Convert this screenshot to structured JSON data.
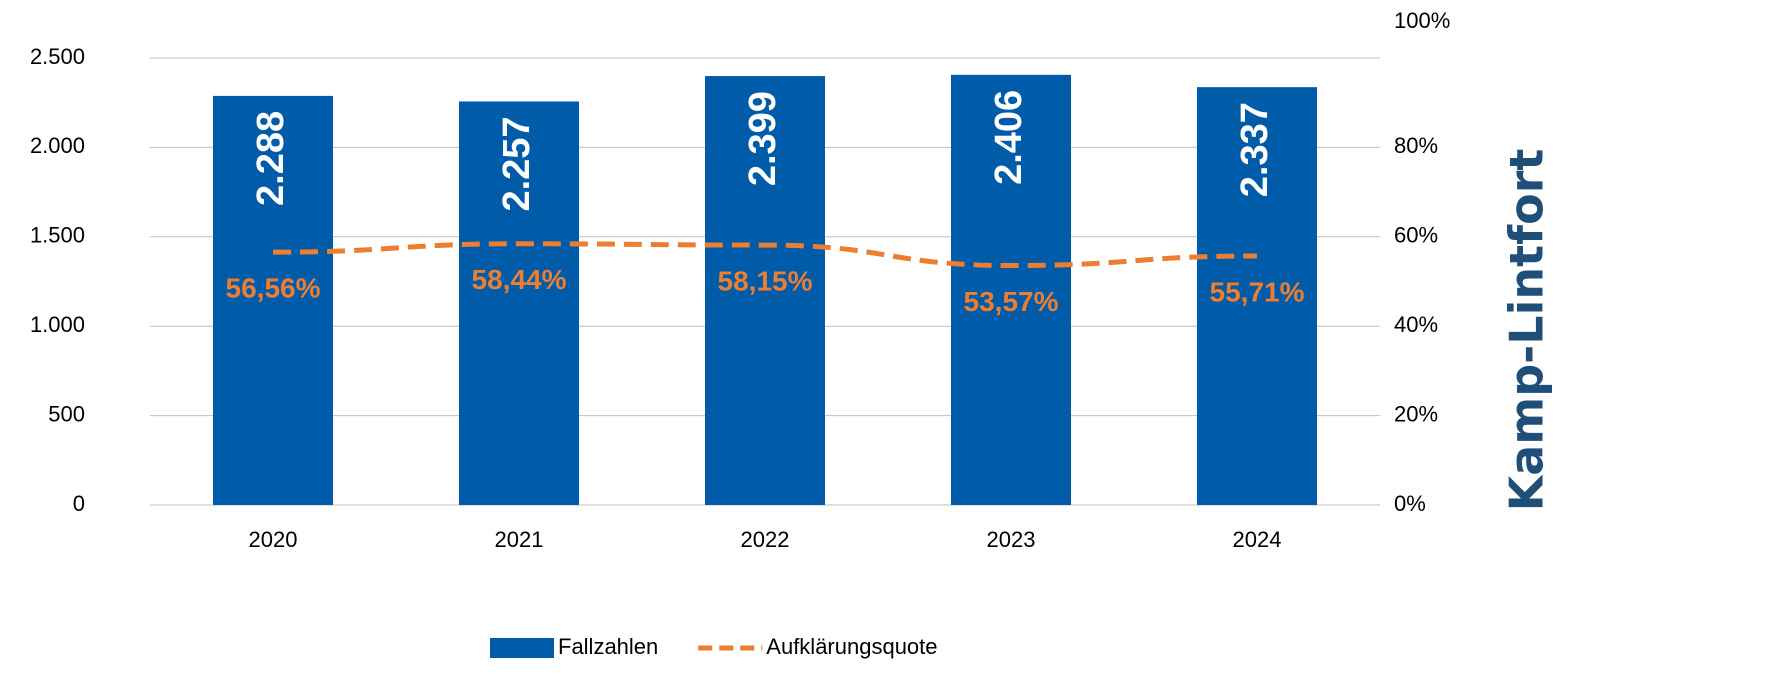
{
  "chart_data": {
    "type": "bar-line",
    "title": "Kamp-Lintfort",
    "categories": [
      "2020",
      "2021",
      "2022",
      "2023",
      "2024"
    ],
    "series": [
      {
        "name": "Fallzahlen",
        "color": "#005ca9",
        "type": "bar",
        "values": [
          2288,
          2257,
          2399,
          2406,
          2337
        ],
        "value_labels": [
          "2.288",
          "2.257",
          "2.399",
          "2.406",
          "2.337"
        ]
      },
      {
        "name": "Aufklärungsquote",
        "color": "#ed7d31",
        "type": "line",
        "axis": "y2",
        "dashed": true,
        "values": [
          56.56,
          58.44,
          58.15,
          53.57,
          55.71
        ],
        "value_labels": [
          "56,56%",
          "58,44%",
          "58,15%",
          "53,57%",
          "55,71%"
        ]
      }
    ],
    "ylim": [
      0,
      2500
    ],
    "yticks": [
      0,
      500,
      {
        "value": 1000,
        "label": "1.000"
      },
      {
        "value": 1500,
        "label": "1.500"
      },
      {
        "value": 2000,
        "label": "2.000"
      },
      {
        "value": 2500,
        "label": "2.500"
      }
    ],
    "y2lim": [
      0,
      100
    ],
    "y2ticks": [
      {
        "value": 0,
        "label": "0%"
      },
      {
        "value": 20,
        "label": "20%"
      },
      {
        "value": 40,
        "label": "40%"
      },
      {
        "value": 60,
        "label": "60%"
      },
      {
        "value": 80,
        "label": "80%"
      },
      {
        "value": 100,
        "label": "100%"
      }
    ],
    "grid": true,
    "legend": "bottom"
  }
}
